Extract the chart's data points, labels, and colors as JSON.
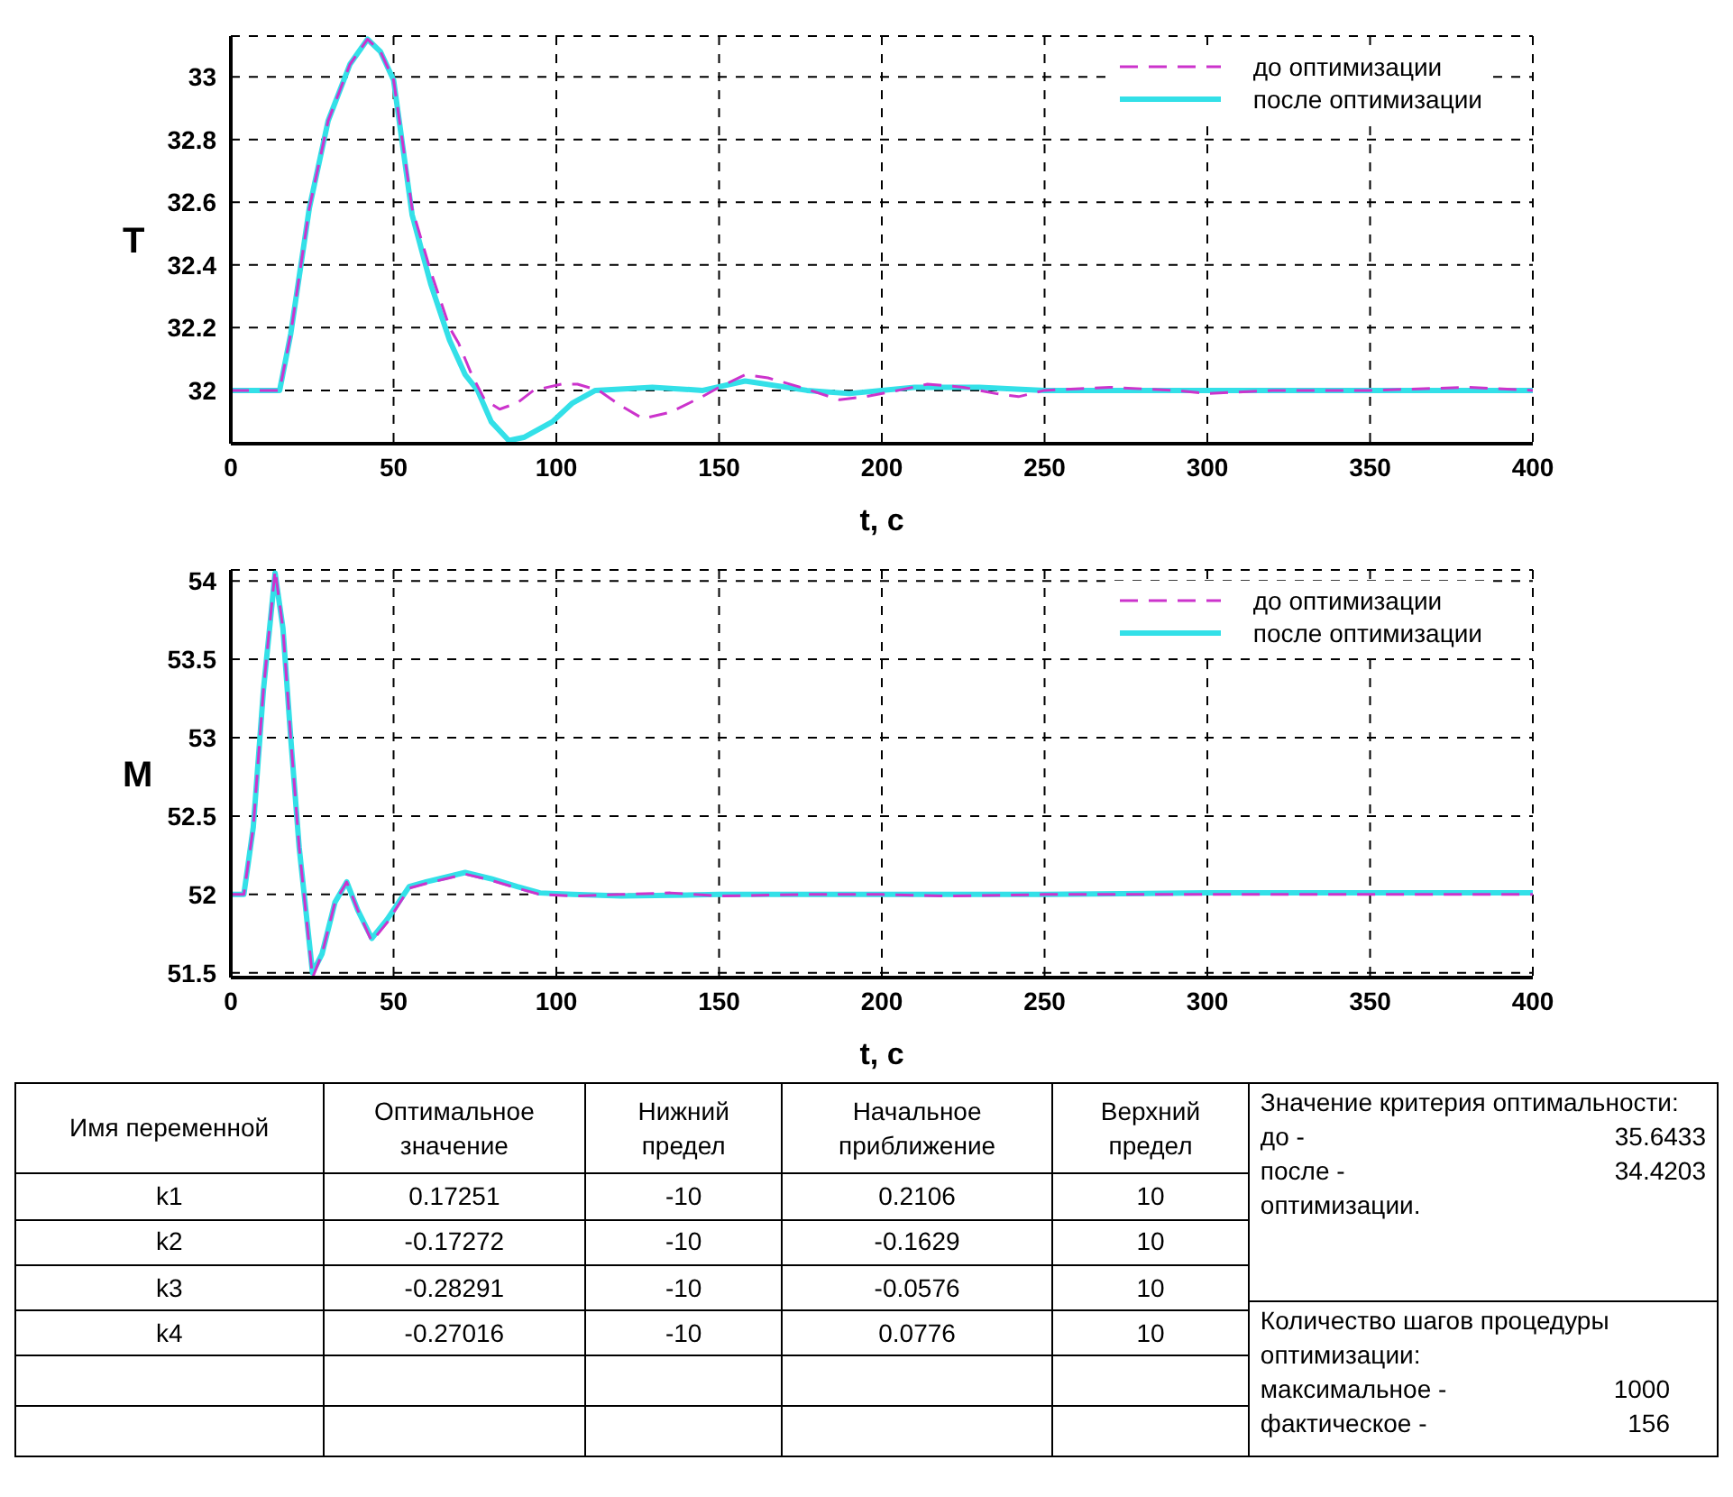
{
  "chart_data": [
    {
      "type": "line",
      "xlabel": "t, c",
      "ylabel": "T",
      "xlim": [
        0,
        400
      ],
      "xticks": [
        0,
        50,
        100,
        150,
        200,
        250,
        300,
        350,
        400
      ],
      "ylim": [
        31.83,
        33.13
      ],
      "yticks": [
        32,
        32.2,
        32.4,
        32.6,
        32.8,
        33
      ],
      "grid": true,
      "legend": "top right",
      "marker": "none",
      "series": [
        {
          "name": "до оптимизации",
          "color": "#cc33cc",
          "line_style": "dashed",
          "x": [
            0,
            15,
            18.4,
            24.1,
            29.9,
            36.6,
            42,
            46,
            50,
            55.7,
            61.4,
            67.2,
            70,
            74,
            78,
            82.6,
            88,
            93,
            101.7,
            106.5,
            113,
            120,
            126.6,
            135,
            144.8,
            150,
            158,
            165,
            175,
            187,
            195,
            205,
            214,
            225,
            235,
            242,
            250,
            270,
            290,
            300,
            320,
            350,
            380,
            400
          ],
          "values": [
            32,
            32,
            32.18,
            32.58,
            32.86,
            33.04,
            33.12,
            33.08,
            32.99,
            32.58,
            32.38,
            32.2,
            32.15,
            32.05,
            31.97,
            31.94,
            31.96,
            32,
            32.02,
            32.02,
            32,
            31.95,
            31.91,
            31.93,
            31.98,
            32.01,
            32.05,
            32.04,
            32.01,
            31.97,
            31.98,
            32,
            32.02,
            32.01,
            31.99,
            31.98,
            32,
            32.01,
            32,
            31.99,
            32,
            32,
            32.01,
            32
          ]
        },
        {
          "name": "после оптимизации",
          "color": "#33e0e8",
          "line_style": "solid",
          "x": [
            0,
            15,
            18.4,
            24.1,
            29.9,
            36.6,
            42,
            46,
            50,
            55.7,
            61.4,
            67.2,
            72,
            75.8,
            80,
            85.4,
            90,
            98.8,
            105,
            112,
            129.5,
            145,
            158,
            177,
            190,
            210,
            230,
            250,
            300,
            350,
            400
          ],
          "values": [
            32,
            32,
            32.18,
            32.58,
            32.86,
            33.04,
            33.12,
            33.08,
            32.99,
            32.56,
            32.34,
            32.16,
            32.05,
            32,
            31.9,
            31.84,
            31.85,
            31.9,
            31.96,
            32,
            32.01,
            32,
            32.03,
            32,
            31.99,
            32.01,
            32.01,
            32,
            32,
            32,
            32
          ]
        }
      ]
    },
    {
      "type": "line",
      "xlabel": "t, c",
      "ylabel": "M",
      "xlim": [
        0,
        400
      ],
      "xticks": [
        0,
        50,
        100,
        150,
        200,
        250,
        300,
        350,
        400
      ],
      "ylim": [
        51.47,
        54.07
      ],
      "yticks": [
        51.5,
        52,
        52.5,
        53,
        53.5,
        54
      ],
      "grid": true,
      "legend": "top right",
      "marker": "none",
      "series": [
        {
          "name": "до оптимизации",
          "color": "#cc33cc",
          "line_style": "dashed",
          "x": [
            0,
            4,
            6.9,
            10,
            13.6,
            16,
            18.4,
            21,
            25.1,
            28,
            32,
            35.6,
            39,
            43.3,
            48,
            54.8,
            60,
            66,
            72,
            80,
            88,
            95,
            105,
            120,
            135,
            150,
            175,
            200,
            220,
            250,
            300,
            350,
            400
          ],
          "values": [
            52,
            52,
            52.43,
            53.3,
            54.07,
            53.7,
            53,
            52.3,
            51.47,
            51.62,
            51.95,
            52.08,
            51.9,
            51.7,
            51.82,
            52.04,
            52.07,
            52.1,
            52.13,
            52.09,
            52.04,
            52,
            51.99,
            52,
            52.01,
            51.99,
            52,
            52,
            51.99,
            52,
            52,
            52,
            52
          ]
        },
        {
          "name": "после оптимизации",
          "color": "#33e0e8",
          "line_style": "solid",
          "x": [
            0,
            4,
            6.9,
            10,
            13.6,
            16,
            18.4,
            21,
            25.1,
            28,
            32,
            35.6,
            39,
            43.3,
            48,
            54.8,
            60,
            66,
            72,
            80,
            88,
            95,
            105,
            120,
            150,
            200,
            250,
            300,
            350,
            400
          ],
          "values": [
            52,
            52,
            52.43,
            53.3,
            54.05,
            53.7,
            53,
            52.3,
            51.5,
            51.62,
            51.95,
            52.08,
            51.9,
            51.72,
            51.84,
            52.05,
            52.08,
            52.11,
            52.14,
            52.1,
            52.05,
            52.01,
            52,
            51.99,
            52,
            52,
            52,
            52.01,
            52.01,
            52.01
          ]
        }
      ]
    },
    {
      "type": "other",
      "annotations": [
        "Имя переменной",
        "Оптимальное значение",
        "Нижний предел",
        "Начальное приближение",
        "Верхний предел",
        "k1",
        "0.17251",
        "-10",
        "0.2106",
        "10",
        "k2",
        "-0.17272",
        "-10",
        "-0.1629",
        "10",
        "k3",
        "-0.28291",
        "-10",
        "-0.0576",
        "10",
        "k4",
        "-0.27016",
        "-10",
        "0.0776",
        "10",
        "Значение критерия оптимальности:",
        "до -",
        "35.6433",
        "после -",
        "34.4203",
        "оптимизации.",
        "Количество шагов процедуры оптимизации:",
        "максимальное -",
        "1000",
        "фактическое -",
        "156"
      ]
    }
  ]
}
